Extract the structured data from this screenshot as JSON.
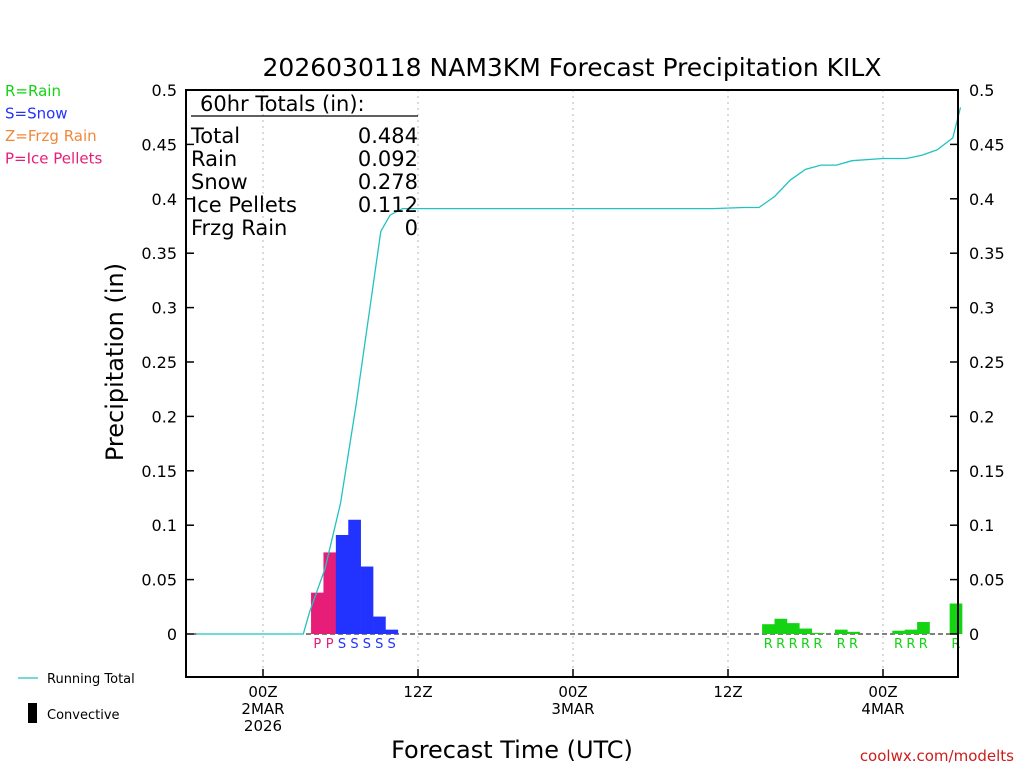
{
  "chart_data": {
    "type": "bar",
    "title": "2026030118 NAM3KM Forecast Precipitation KILX",
    "xlabel": "Forecast Time (UTC)",
    "ylabel": "Precipitation (in)",
    "ylim": [
      -0.04,
      0.5
    ],
    "xlim": [
      -4.5,
      45
    ],
    "y_ticks": [
      "0",
      "0.05",
      "0.1",
      "0.15",
      "0.2",
      "0.25",
      "0.3",
      "0.35",
      "0.4",
      "0.45",
      "0.5"
    ],
    "x_ticks": [
      {
        "x": 0,
        "lines": [
          "00Z",
          "2MAR",
          "2026"
        ]
      },
      {
        "x": 10,
        "lines": [
          "12Z"
        ]
      },
      {
        "x": 20,
        "lines": [
          "00Z",
          "3MAR"
        ]
      },
      {
        "x": 30,
        "lines": [
          "12Z"
        ]
      },
      {
        "x": 40,
        "lines": [
          "00Z",
          "4MAR"
        ]
      }
    ],
    "bars": [
      {
        "x": 3.5,
        "value": 0.038,
        "type": "P"
      },
      {
        "x": 4.3,
        "value": 0.075,
        "type": "P"
      },
      {
        "x": 5.1,
        "value": 0.091,
        "type": "S"
      },
      {
        "x": 5.9,
        "value": 0.105,
        "type": "S"
      },
      {
        "x": 6.7,
        "value": 0.062,
        "type": "S"
      },
      {
        "x": 7.5,
        "value": 0.016,
        "type": "S"
      },
      {
        "x": 8.3,
        "value": 0.004,
        "type": "S"
      },
      {
        "x": 32.6,
        "value": 0.009,
        "type": "R"
      },
      {
        "x": 33.4,
        "value": 0.014,
        "type": "R"
      },
      {
        "x": 34.2,
        "value": 0.01,
        "type": "R"
      },
      {
        "x": 35.0,
        "value": 0.005,
        "type": "R"
      },
      {
        "x": 35.8,
        "value": 0.001,
        "type": "R"
      },
      {
        "x": 37.3,
        "value": 0.004,
        "type": "R"
      },
      {
        "x": 38.1,
        "value": 0.002,
        "type": "R"
      },
      {
        "x": 41.0,
        "value": 0.003,
        "type": "R"
      },
      {
        "x": 41.8,
        "value": 0.004,
        "type": "R"
      },
      {
        "x": 42.6,
        "value": 0.011,
        "type": "R"
      },
      {
        "x": 44.7,
        "value": 0.028,
        "type": "R"
      }
    ],
    "running_total": {
      "name": "Running Total",
      "x": [
        -4.3,
        2.6,
        3.0,
        4.0,
        5.0,
        6.0,
        7.0,
        7.6,
        8.2,
        9.0,
        10.0,
        20.0,
        27.0,
        29.0,
        31.0,
        32.0,
        33.0,
        34.0,
        35.0,
        36.0,
        37.0,
        38.0,
        40.0,
        40.5,
        41.5,
        42.5,
        43.5,
        44.5,
        45.0
      ],
      "y": [
        0,
        0,
        0.02,
        0.06,
        0.12,
        0.21,
        0.31,
        0.37,
        0.385,
        0.391,
        0.391,
        0.391,
        0.391,
        0.391,
        0.392,
        0.392,
        0.402,
        0.417,
        0.427,
        0.431,
        0.431,
        0.435,
        0.437,
        0.437,
        0.437,
        0.44,
        0.445,
        0.456,
        0.484
      ]
    },
    "totals_box": {
      "heading": "60hr Totals (in):",
      "rows": [
        {
          "label": "Total",
          "value": "0.484"
        },
        {
          "label": "Rain",
          "value": "0.092"
        },
        {
          "label": "Snow",
          "value": "0.278"
        },
        {
          "label": "Ice Pellets",
          "value": "0.112"
        },
        {
          "label": "Frzg Rain",
          "value": "0"
        }
      ]
    }
  },
  "colors": {
    "R": "#13d313",
    "S": "#2233ff",
    "Z": "#f0883a",
    "P": "#e61e78",
    "running_total": "#22c2c2",
    "credit": "#cc1c1c"
  },
  "legend": {
    "types": [
      {
        "code": "R",
        "label": "R=Rain"
      },
      {
        "code": "S",
        "label": "S=Snow"
      },
      {
        "code": "Z",
        "label": "Z=Frzg Rain"
      },
      {
        "code": "P",
        "label": "P=Ice Pellets"
      }
    ],
    "running_total_label": "Running Total",
    "convective_label": "Convective"
  },
  "credit": "coolwx.com/modelts"
}
